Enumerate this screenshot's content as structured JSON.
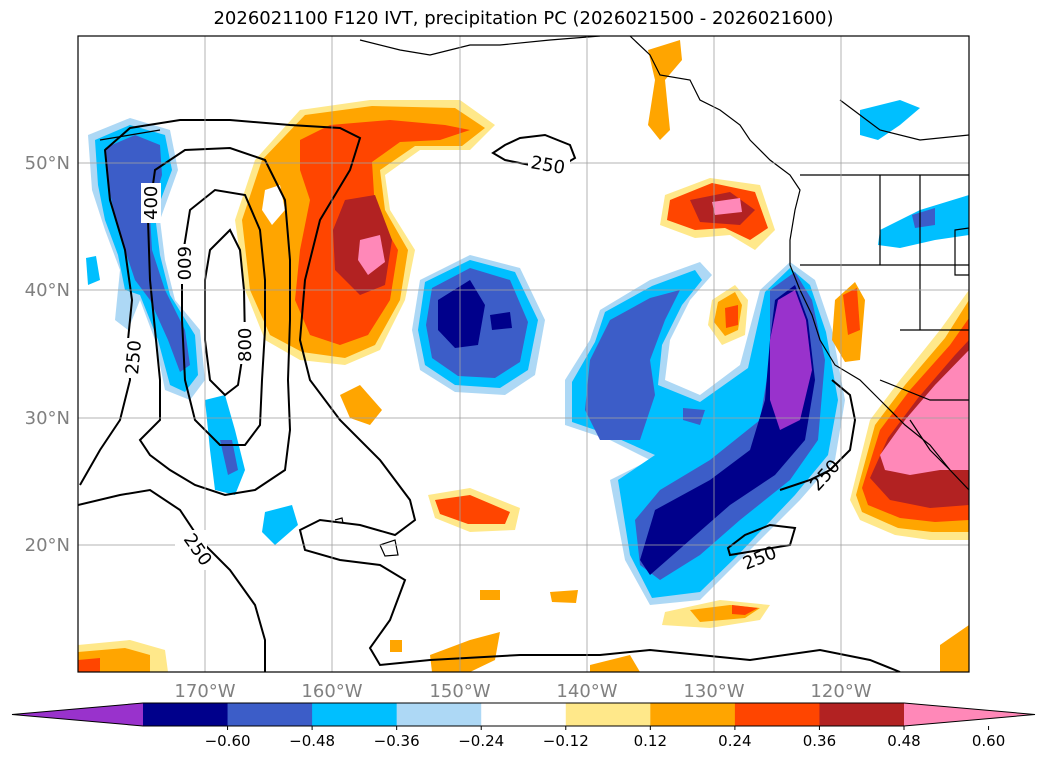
{
  "title": "2026021100 F120 IVT, precipitation PC (2026021500 - 2026021600)",
  "map": {
    "lat_labels": [
      "50°N",
      "40°N",
      "30°N",
      "20°N"
    ],
    "lon_labels": [
      "170°W",
      "160°W",
      "150°W",
      "140°W",
      "130°W",
      "120°W"
    ],
    "ivt_contour_labels": [
      "250",
      "400",
      "600",
      "800",
      "250",
      "250",
      "250",
      "250"
    ]
  },
  "colorbar": {
    "ticks": [
      "−0.60",
      "−0.48",
      "−0.36",
      "−0.24",
      "−0.12",
      "0.12",
      "0.24",
      "0.36",
      "0.48",
      "0.60"
    ],
    "colors": [
      "#9932cc",
      "#00008b",
      "#3c5dc8",
      "#00bfff",
      "#add8f5",
      "#ffffff",
      "#ffe88a",
      "#ffa500",
      "#ff4500",
      "#b22222",
      "#ff88b8"
    ]
  }
}
